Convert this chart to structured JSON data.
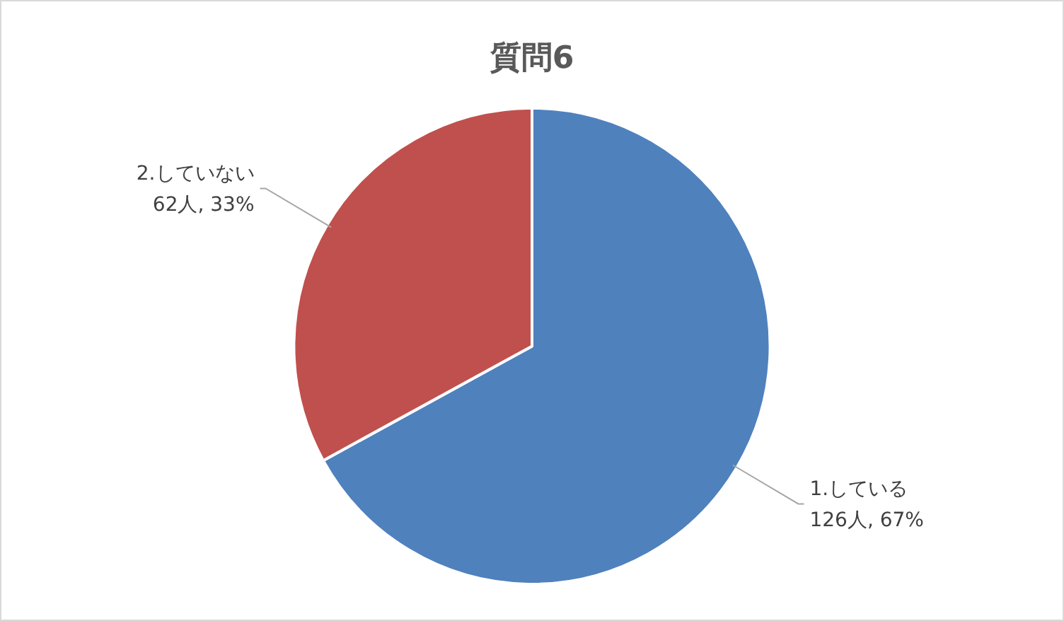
{
  "chart_data": {
    "type": "pie",
    "title": "質問6",
    "categories": [
      "1.している",
      "2.していない"
    ],
    "values": [
      126,
      62
    ],
    "colors": [
      "#4f81bd",
      "#c0504d"
    ],
    "value_labels": [
      "126人, 67%",
      "62人, 33%"
    ],
    "legend": false
  }
}
